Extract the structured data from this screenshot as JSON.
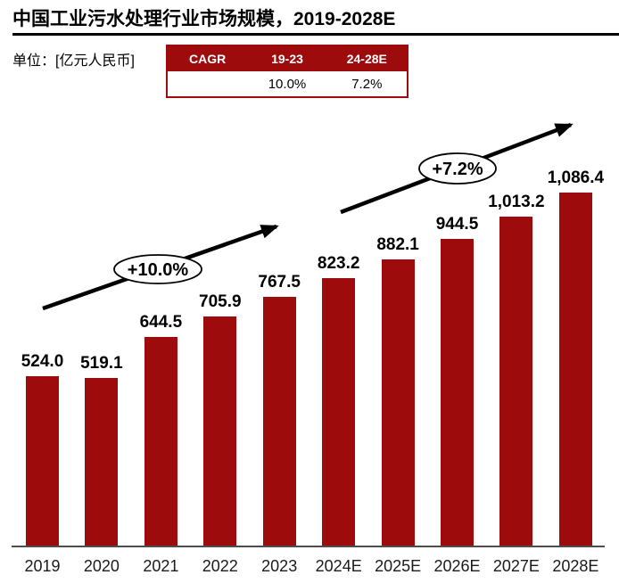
{
  "cagr_table": {
    "headers": [
      "CAGR",
      "19-23",
      "24-28E"
    ],
    "row": [
      "",
      "10.0%",
      "7.2%"
    ]
  },
  "chart_data": {
    "type": "bar",
    "title": "中国工业污水处理行业市场规模，2019-2028E",
    "unit_label": "单位：[亿元人民币]",
    "categories": [
      "2019",
      "2020",
      "2021",
      "2022",
      "2023",
      "2024E",
      "2025E",
      "2026E",
      "2027E",
      "2028E"
    ],
    "values": [
      524.0,
      519.1,
      644.5,
      705.9,
      767.5,
      823.2,
      882.1,
      944.5,
      1013.2,
      1086.4
    ],
    "value_labels": [
      "524.0",
      "519.1",
      "644.5",
      "705.9",
      "767.5",
      "823.2",
      "882.1",
      "944.5",
      "1,013.2",
      "1,086.4"
    ],
    "annotations": [
      {
        "label": "+10.0%"
      },
      {
        "label": "+7.2%"
      }
    ],
    "bar_color": "#9E0B0C",
    "header_color": "#9E0B0C",
    "axis_color": "#4d4d4d",
    "ylim": [
      0,
      1150
    ],
    "grid": false,
    "legend": false,
    "value_labels_shown": true,
    "y_axis_labels_shown": false
  }
}
